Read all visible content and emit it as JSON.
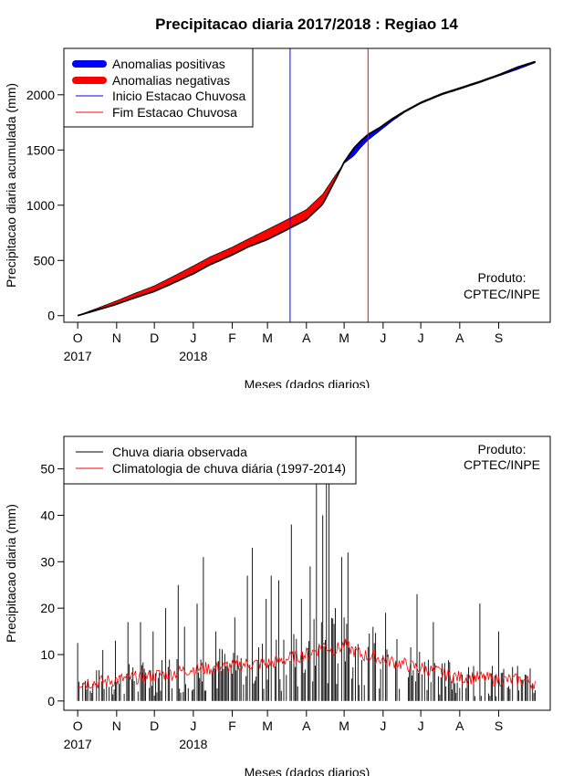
{
  "chart_data": [
    {
      "type": "area",
      "title": "Precipitacao diaria 2017/2018 : Regiao 14",
      "xlabel": "Meses (dados diarios)",
      "ylabel": "Precipitacao diaria acumulada (mm)",
      "x_unit": "days since 2017-10-01",
      "xlim": [
        -11,
        376
      ],
      "ylim": [
        -60,
        2420
      ],
      "yticks": [
        0,
        500,
        1000,
        1500,
        2000
      ],
      "month_labels": [
        "O",
        "N",
        "D",
        "J",
        "F",
        "M",
        "A",
        "M",
        "J",
        "J",
        "A",
        "S"
      ],
      "month_days": [
        0,
        31,
        61,
        92,
        123,
        151,
        182,
        212,
        243,
        273,
        304,
        335
      ],
      "year_labels": [
        {
          "text": "2017",
          "day": 0
        },
        {
          "text": "2018",
          "day": 92
        }
      ],
      "legend": [
        "Anomalias positivas",
        "Anomalias negativas",
        "Inicio Estacao Chuvosa",
        "Fim Estacao Chuvosa"
      ],
      "colors": {
        "positive": "#0000ff",
        "negative": "#ff0000",
        "start_line": "#0000ff",
        "end_line": "#ff0000",
        "curve": "#000000"
      },
      "start_season_day": 169,
      "end_season_day": 231,
      "product_label": [
        "Produto:",
        "CPTEC/INPE"
      ],
      "observed_cumulative": {
        "days": [
          0,
          15,
          30,
          45,
          61,
          75,
          92,
          105,
          123,
          135,
          151,
          165,
          182,
          195,
          205,
          212,
          220,
          225,
          231,
          240,
          250,
          260,
          273,
          290,
          304,
          320,
          335,
          350,
          364
        ],
        "values": [
          0,
          50,
          100,
          160,
          220,
          290,
          380,
          460,
          550,
          620,
          690,
          770,
          870,
          1010,
          1230,
          1390,
          1520,
          1580,
          1640,
          1700,
          1780,
          1850,
          1930,
          2010,
          2060,
          2120,
          2180,
          2250,
          2300
        ]
      },
      "climatology_cumulative": {
        "days": [
          0,
          15,
          30,
          45,
          61,
          75,
          92,
          105,
          123,
          135,
          151,
          165,
          182,
          195,
          205,
          212,
          220,
          225,
          231,
          240,
          250,
          260,
          273,
          290,
          304,
          320,
          335,
          350,
          364
        ],
        "values": [
          0,
          65,
          130,
          200,
          270,
          350,
          450,
          530,
          620,
          690,
          780,
          860,
          960,
          1100,
          1270,
          1380,
          1450,
          1520,
          1590,
          1670,
          1760,
          1840,
          1920,
          2000,
          2050,
          2110,
          2170,
          2230,
          2290
        ]
      }
    },
    {
      "type": "bar",
      "title": "",
      "xlabel": "Meses (dados diarios)",
      "ylabel": "Precipitacao diaria (mm)",
      "x_unit": "days since 2017-10-01",
      "xlim": [
        -11,
        376
      ],
      "ylim": [
        -2,
        57
      ],
      "yticks": [
        0,
        10,
        20,
        30,
        40,
        50
      ],
      "month_labels": [
        "O",
        "N",
        "D",
        "J",
        "F",
        "M",
        "A",
        "M",
        "J",
        "J",
        "A",
        "S"
      ],
      "month_days": [
        0,
        31,
        61,
        92,
        123,
        151,
        182,
        212,
        243,
        273,
        304,
        335
      ],
      "year_labels": [
        {
          "text": "2017",
          "day": 0
        },
        {
          "text": "2018",
          "day": 92
        }
      ],
      "legend": [
        "Chuva diaria observada",
        "Climatologia de chuva diária (1997-2014)"
      ],
      "colors": {
        "observed": "#000000",
        "climatology": "#ff0000"
      },
      "product_label": [
        "Produto:",
        "CPTEC/INPE"
      ],
      "observed_daily_peaks": {
        "days": [
          0,
          20,
          30,
          40,
          50,
          60,
          70,
          80,
          85,
          95,
          100,
          110,
          125,
          135,
          139,
          150,
          154,
          160,
          170,
          178,
          185,
          190,
          195,
          198,
          200,
          205,
          210,
          212,
          215,
          245,
          270,
          283,
          320,
          335
        ],
        "values": [
          12.5,
          11,
          13,
          17,
          17,
          15,
          20,
          25,
          16,
          21,
          31,
          15,
          18,
          27,
          33,
          22,
          27,
          26,
          38,
          22,
          29,
          50,
          40,
          50,
          60,
          20,
          31,
          18,
          32,
          19,
          23,
          17,
          21,
          15
        ]
      },
      "climatology_daily": {
        "days": [
          0,
          15,
          30,
          45,
          61,
          75,
          92,
          105,
          123,
          135,
          151,
          165,
          182,
          190,
          195,
          205,
          212,
          225,
          243,
          258,
          273,
          290,
          304,
          320,
          335,
          350,
          364
        ],
        "values": [
          4,
          4,
          4.5,
          5,
          5.5,
          6,
          7,
          7,
          7.5,
          8,
          8,
          9,
          10,
          11,
          12,
          11,
          12,
          10,
          9,
          8,
          7,
          6,
          5,
          5,
          4.5,
          4.5,
          4
        ]
      }
    }
  ]
}
